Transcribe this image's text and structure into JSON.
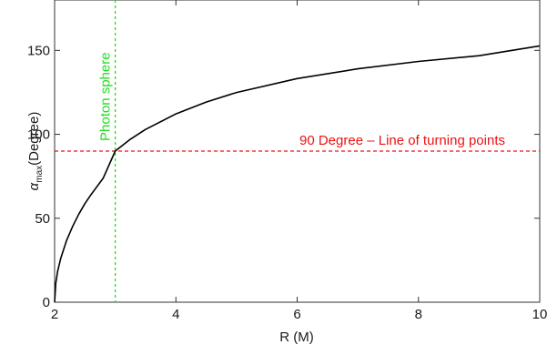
{
  "chart_data": {
    "type": "line",
    "title": "",
    "xlabel": "R (M)",
    "ylabel": {
      "symbol": "α",
      "subscript": "max",
      "unit": "(Degree)"
    },
    "xlim": [
      2,
      10
    ],
    "ylim": [
      0,
      180
    ],
    "xticks": [
      2,
      4,
      6,
      8,
      10
    ],
    "yticks": [
      0,
      50,
      100,
      150
    ],
    "grid": false,
    "legend": "none",
    "series": [
      {
        "color": "#000000",
        "x": [
          2.0,
          2.02,
          2.05,
          2.1,
          2.2,
          2.3,
          2.4,
          2.5,
          2.6,
          2.8,
          3.0,
          3.25,
          3.5,
          4.0,
          4.5,
          5.0,
          6.0,
          7.0,
          8.0,
          9.0,
          10.0
        ],
        "y": [
          0,
          11.4,
          18.3,
          26.1,
          37.0,
          45.4,
          52.5,
          58.7,
          64.1,
          73.8,
          90.0,
          97.1,
          102.9,
          112.2,
          119.2,
          124.9,
          133.2,
          139.0,
          143.4,
          146.8,
          152.7
        ]
      }
    ],
    "reference_lines": [
      {
        "orientation": "vertical",
        "x": 3,
        "label": "Photon sphere",
        "color": "#22dd22",
        "style": "dashed"
      },
      {
        "orientation": "horizontal",
        "y": 90,
        "label": "90 Degree – Line of turning points",
        "color": "#ee1111",
        "style": "dashed"
      }
    ]
  }
}
